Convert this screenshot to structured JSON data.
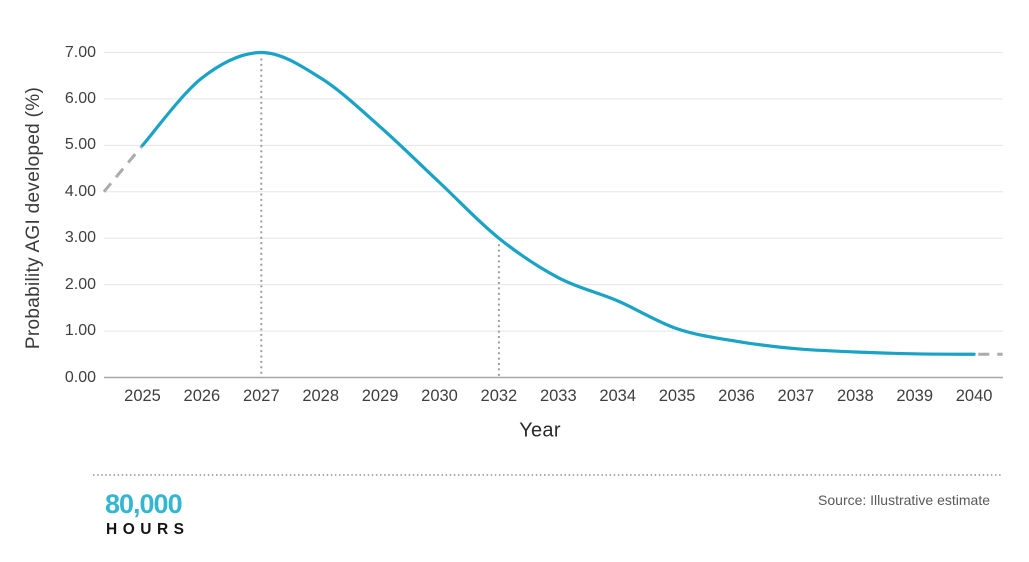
{
  "colors": {
    "curve": "#1aa3c4",
    "logo_teal": "#35b5d0",
    "grid": "#e5e5e5",
    "axis": "#a8a8a8",
    "dashed": "#ababab",
    "dotted_guide": "#9e9e9e",
    "separator": "#8f8f8f"
  },
  "chart_data": {
    "type": "line",
    "title": "",
    "xlabel": "Year",
    "ylabel": "Probability AGI developed (%)",
    "categories": [
      "2025",
      "2026",
      "2027",
      "2028",
      "2029",
      "2030",
      "2032",
      "2033",
      "2034",
      "2035",
      "2036",
      "2037",
      "2038",
      "2039",
      "2040"
    ],
    "y_tick_labels": [
      "0.00",
      "1.00",
      "2.00",
      "3.00",
      "4.00",
      "5.00",
      "6.00",
      "7.00"
    ],
    "ylim": [
      0,
      7
    ],
    "grid": "horizontal",
    "legend": "none",
    "series": [
      {
        "name": "Probability AGI developed (%)",
        "color": "#1aa3c4",
        "values": [
          5.0,
          6.45,
          7.0,
          6.45,
          5.4,
          4.2,
          3.0,
          2.15,
          1.65,
          1.05,
          0.78,
          0.62,
          0.55,
          0.51,
          0.5
        ]
      }
    ],
    "dashed_lead_in": {
      "points": [
        [
          -0.65,
          4.0
        ],
        [
          0,
          5.0
        ]
      ]
    },
    "dashed_tail": {
      "points": [
        [
          14.07,
          0.5
        ],
        [
          14.48,
          0.5
        ]
      ]
    },
    "annotations": [
      {
        "category": "2027",
        "top_value": 7.0,
        "style": "dotted-vertical"
      },
      {
        "category": "2032",
        "top_value": 3.0,
        "style": "dotted-vertical"
      }
    ]
  },
  "footer": {
    "logo_line1": "80,000",
    "logo_line2": "HOURS",
    "source": "Source: Illustrative estimate"
  }
}
